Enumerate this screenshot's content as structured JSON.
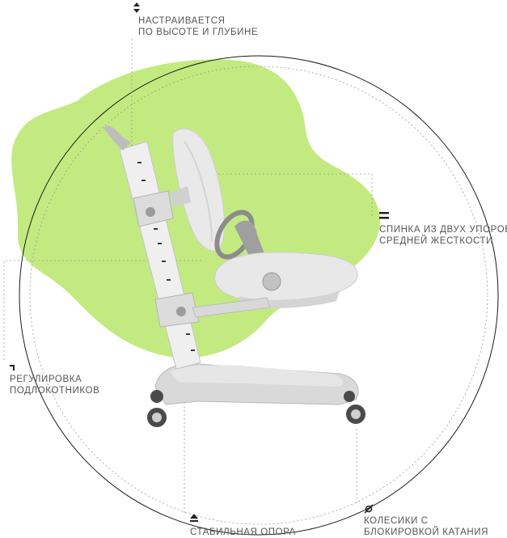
{
  "colors": {
    "blob": "#c3ea80",
    "outline": "#1a1a1a",
    "dashed": "#9a9a9a",
    "chair_light": "#ededed",
    "chair_mid": "#d6d6d6",
    "chair_dark": "#a9a9a9",
    "text": "#555555"
  },
  "features": {
    "height_depth": {
      "icon": "up-down-arrows-icon",
      "line1": "НАСТРАИВАЕТСЯ",
      "line2": "ПО ВЫСОТЕ И ГЛУБИНЕ"
    },
    "backrest": {
      "icon": "double-bar-icon",
      "line1": "СПИНКА ИЗ ДВУХ УПОРОВ",
      "line2": "СРЕДНЕЙ ЖЕСТКОСТИ"
    },
    "armrest": {
      "icon": "corner-arrow-icon",
      "line1": "РЕГУЛИРОВКА",
      "line2": "ПОДЛОКОТНИКОВ"
    },
    "base": {
      "icon": "up-triangle-icon",
      "line1": "СТАБИЛЬНАЯ ОПОРА"
    },
    "casters": {
      "icon": "slashed-circle-icon",
      "line1": "КОЛЕСИКИ С",
      "line2": "БЛОКИРОВКОЙ КАТАНИЯ"
    }
  }
}
